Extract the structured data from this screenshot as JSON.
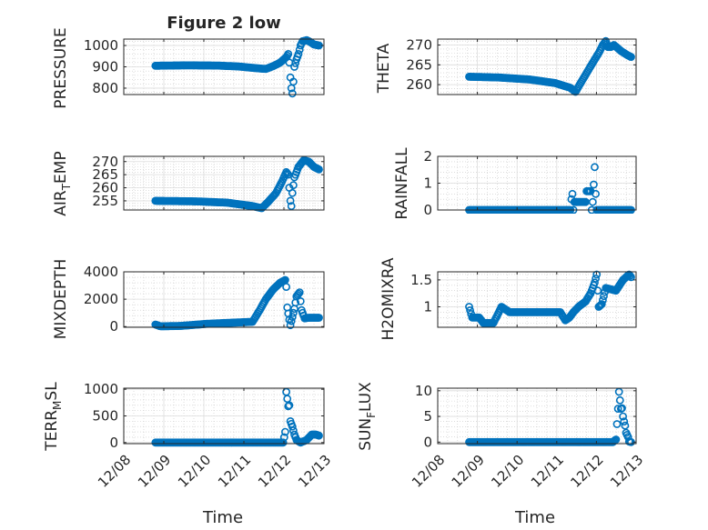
{
  "figure": {
    "title": "Figure 2 low",
    "xlabel": "Time"
  },
  "x_tick_labels": [
    "12/08",
    "12/09",
    "12/10",
    "12/11",
    "12/12",
    "12/13"
  ],
  "colors": {
    "marker": "#0072bd",
    "axes": "#262626",
    "grid": "#c8c8c8"
  },
  "chart_data": [
    {
      "type": "scatter",
      "ylabel": "PRESSURE",
      "ylim": [
        770,
        1030
      ],
      "yticks": [
        800,
        900,
        1000
      ],
      "ytick_labels": [
        "800",
        "900",
        "1000"
      ],
      "xlim": [
        "12/08",
        "12/13"
      ],
      "grid": true,
      "marker": "open-circle",
      "series": [
        {
          "x_start": "12/08 19:00",
          "x_end": "12/12 21:00",
          "knots": [
            [
              0,
              905
            ],
            [
              30,
              907
            ],
            [
              60,
              906
            ],
            [
              80,
              902
            ],
            [
              96,
              895
            ],
            [
              108,
              890
            ],
            [
              116,
              905
            ],
            [
              122,
              920
            ],
            [
              128,
              945
            ],
            [
              130,
              960
            ],
            [
              131,
              920
            ],
            [
              132,
              850
            ],
            [
              133,
              800
            ],
            [
              134,
              775
            ],
            [
              135,
              830
            ],
            [
              136,
              900
            ],
            [
              138,
              935
            ],
            [
              140,
              960
            ],
            [
              142,
              1000
            ],
            [
              144,
              1020
            ],
            [
              148,
              1025
            ],
            [
              152,
              1015
            ],
            [
              155,
              1005
            ],
            [
              160,
              1000
            ]
          ]
        }
      ]
    },
    {
      "type": "scatter",
      "ylabel": "THETA",
      "ylim": [
        257.5,
        271.5
      ],
      "yticks": [
        260,
        265,
        270
      ],
      "ytick_labels": [
        "260",
        "265",
        "270"
      ],
      "xlim": [
        "12/08",
        "12/13"
      ],
      "grid": true,
      "marker": "open-circle",
      "series": [
        {
          "x_start": "12/08 19:00",
          "x_end": "12/12 21:00",
          "knots": [
            [
              0,
              262
            ],
            [
              30,
              261.8
            ],
            [
              60,
              261.3
            ],
            [
              85,
              260.4
            ],
            [
              100,
              259.2
            ],
            [
              105,
              258.2
            ],
            [
              108,
              259.5
            ],
            [
              115,
              262.5
            ],
            [
              122,
              265.5
            ],
            [
              128,
              268
            ],
            [
              132,
              270
            ],
            [
              135,
              271
            ],
            [
              137,
              269.5
            ],
            [
              140,
              269.5
            ],
            [
              143,
              270
            ],
            [
              150,
              268.5
            ],
            [
              156,
              267.5
            ],
            [
              160,
              267
            ]
          ]
        }
      ]
    },
    {
      "type": "scatter",
      "ylabel": "AIR_TEMP",
      "ylim": [
        251.5,
        272
      ],
      "yticks": [
        255,
        260,
        265,
        270
      ],
      "ytick_labels": [
        "255",
        "260",
        "265",
        "270"
      ],
      "xlim": [
        "12/08",
        "12/13"
      ],
      "grid": true,
      "marker": "open-circle",
      "series": [
        {
          "x_start": "12/08 19:00",
          "x_end": "12/12 21:00",
          "knots": [
            [
              0,
              255
            ],
            [
              40,
              254.8
            ],
            [
              70,
              254.3
            ],
            [
              95,
              253
            ],
            [
              104,
              252.2
            ],
            [
              110,
              254.5
            ],
            [
              118,
              258
            ],
            [
              124,
              262.5
            ],
            [
              128,
              266
            ],
            [
              130,
              265
            ],
            [
              131,
              260
            ],
            [
              132,
              255
            ],
            [
              133,
              253
            ],
            [
              134,
              258
            ],
            [
              136,
              264
            ],
            [
              140,
              268
            ],
            [
              145,
              270.5
            ],
            [
              150,
              270
            ],
            [
              155,
              268
            ],
            [
              160,
              267
            ]
          ]
        }
      ]
    },
    {
      "type": "scatter",
      "ylabel": "RAINFALL",
      "ylim": [
        0,
        2
      ],
      "yticks": [
        0,
        1,
        2
      ],
      "ytick_labels": [
        "0",
        "1",
        "2"
      ],
      "xlim": [
        "12/08",
        "12/13"
      ],
      "grid": true,
      "marker": "open-circle",
      "series": [
        {
          "x_start": "12/08 19:00",
          "x_end": "12/12 21:00",
          "knots": [
            [
              0,
              0
            ],
            [
              100,
              0
            ],
            [
              101,
              0.4
            ],
            [
              102,
              0.6
            ],
            [
              103,
              0
            ],
            [
              104,
              0.3
            ],
            [
              115,
              0.3
            ],
            [
              116,
              0.7
            ],
            [
              120,
              0.7
            ],
            [
              121,
              0
            ],
            [
              122,
              0.3
            ],
            [
              124,
              1.6
            ],
            [
              125,
              0.6
            ],
            [
              126,
              0
            ],
            [
              160,
              0
            ]
          ]
        }
      ]
    },
    {
      "type": "scatter",
      "ylabel": "MIXDEPTH",
      "ylim": [
        -50,
        4000
      ],
      "yticks": [
        0,
        2000,
        4000
      ],
      "ytick_labels": [
        "0",
        "2000",
        "4000"
      ],
      "xlim": [
        "12/08",
        "12/13"
      ],
      "grid": true,
      "marker": "open-circle",
      "series": [
        {
          "x_start": "12/08 19:00",
          "x_end": "12/12 21:00",
          "knots": [
            [
              0,
              150
            ],
            [
              5,
              20
            ],
            [
              25,
              50
            ],
            [
              50,
              200
            ],
            [
              80,
              300
            ],
            [
              95,
              350
            ],
            [
              102,
              1200
            ],
            [
              108,
              2000
            ],
            [
              115,
              2700
            ],
            [
              122,
              3200
            ],
            [
              127,
              3400
            ],
            [
              128,
              2900
            ],
            [
              129,
              1400
            ],
            [
              131,
              500
            ],
            [
              132,
              100
            ],
            [
              134,
              700
            ],
            [
              136,
              1300
            ],
            [
              138,
              2200
            ],
            [
              141,
              2500
            ],
            [
              143,
              1200
            ],
            [
              146,
              600
            ],
            [
              150,
              650
            ],
            [
              160,
              650
            ]
          ]
        }
      ]
    },
    {
      "type": "scatter",
      "ylabel": "H2OMIXRA",
      "ylim": [
        0.62,
        1.65
      ],
      "yticks": [
        1,
        1.5
      ],
      "ytick_labels": [
        "1",
        "1.5"
      ],
      "xlim": [
        "12/08",
        "12/13"
      ],
      "grid": true,
      "marker": "open-circle",
      "series": [
        {
          "x_start": "12/08 19:00",
          "x_end": "12/12 21:00",
          "knots": [
            [
              0,
              1
            ],
            [
              3,
              0.8
            ],
            [
              10,
              0.8
            ],
            [
              14,
              0.7
            ],
            [
              24,
              0.7
            ],
            [
              28,
              0.85
            ],
            [
              32,
              1
            ],
            [
              40,
              0.9
            ],
            [
              90,
              0.9
            ],
            [
              95,
              0.75
            ],
            [
              99,
              0.8
            ],
            [
              103,
              0.9
            ],
            [
              108,
              1
            ],
            [
              115,
              1.1
            ],
            [
              120,
              1.25
            ],
            [
              124,
              1.45
            ],
            [
              126,
              1.6
            ],
            [
              128,
              1.0
            ],
            [
              131,
              1.05
            ],
            [
              135,
              1.35
            ],
            [
              145,
              1.3
            ],
            [
              152,
              1.5
            ],
            [
              158,
              1.6
            ],
            [
              160,
              1.55
            ]
          ]
        }
      ]
    },
    {
      "type": "scatter",
      "ylabel": "TERR_MSL",
      "ylim": [
        -20,
        1020
      ],
      "yticks": [
        0,
        500,
        1000
      ],
      "ytick_labels": [
        "0",
        "500",
        "1000"
      ],
      "xlim": [
        "12/08",
        "12/13"
      ],
      "grid": true,
      "marker": "open-circle",
      "series": [
        {
          "x_start": "12/08 19:00",
          "x_end": "12/12 21:00",
          "knots": [
            [
              0,
              0
            ],
            [
              125,
              0
            ],
            [
              127,
              200
            ],
            [
              128,
              950
            ],
            [
              129,
              820
            ],
            [
              130,
              680
            ],
            [
              131,
              700
            ],
            [
              132,
              400
            ],
            [
              134,
              300
            ],
            [
              136,
              150
            ],
            [
              138,
              50
            ],
            [
              142,
              0
            ],
            [
              148,
              50
            ],
            [
              153,
              150
            ],
            [
              157,
              150
            ],
            [
              160,
              130
            ]
          ]
        }
      ]
    },
    {
      "type": "scatter",
      "ylabel": "SUN_FLUX",
      "ylim": [
        -0.3,
        10.5
      ],
      "yticks": [
        0,
        5,
        10
      ],
      "ytick_labels": [
        "0",
        "5",
        "10"
      ],
      "xlim": [
        "12/08",
        "12/13"
      ],
      "grid": true,
      "marker": "open-circle",
      "series": [
        {
          "x_start": "12/08 19:00",
          "x_end": "12/12 21:00",
          "knots": [
            [
              0,
              0
            ],
            [
              142,
              0
            ],
            [
              145,
              0.5
            ],
            [
              147,
              6.5
            ],
            [
              148,
              9.8
            ],
            [
              150,
              6.5
            ],
            [
              151,
              6.6
            ],
            [
              152,
              5
            ],
            [
              153,
              4
            ],
            [
              154,
              3.2
            ],
            [
              155,
              1.8
            ],
            [
              157,
              1
            ],
            [
              158,
              0.1
            ],
            [
              160,
              0
            ]
          ]
        }
      ]
    }
  ]
}
